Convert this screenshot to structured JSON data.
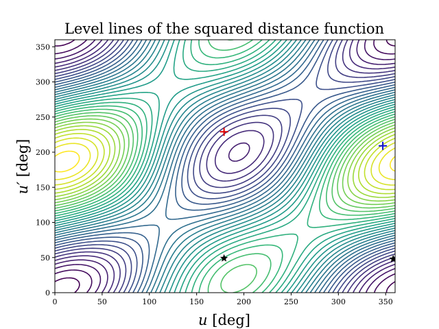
{
  "chart_data": {
    "type": "contour",
    "title": "Level lines of the squared distance function",
    "xlabel": "u [deg]",
    "ylabel": "u′ [deg]",
    "xlim": [
      0,
      360
    ],
    "ylim": [
      0,
      360
    ],
    "xticks": [
      0,
      50,
      100,
      150,
      200,
      250,
      300,
      350
    ],
    "yticks": [
      0,
      50,
      100,
      150,
      200,
      250,
      300,
      350
    ],
    "colormap": "viridis",
    "grid": false,
    "markers": [
      {
        "kind": "plus",
        "color": "#e00000",
        "x": 179,
        "y": 229
      },
      {
        "kind": "plus",
        "color": "#1010d0",
        "x": 347,
        "y": 209
      },
      {
        "kind": "star",
        "color": "#000000",
        "x": 179,
        "y": 49
      },
      {
        "kind": "star",
        "color": "#000000",
        "x": 358,
        "y": 48
      }
    ]
  }
}
